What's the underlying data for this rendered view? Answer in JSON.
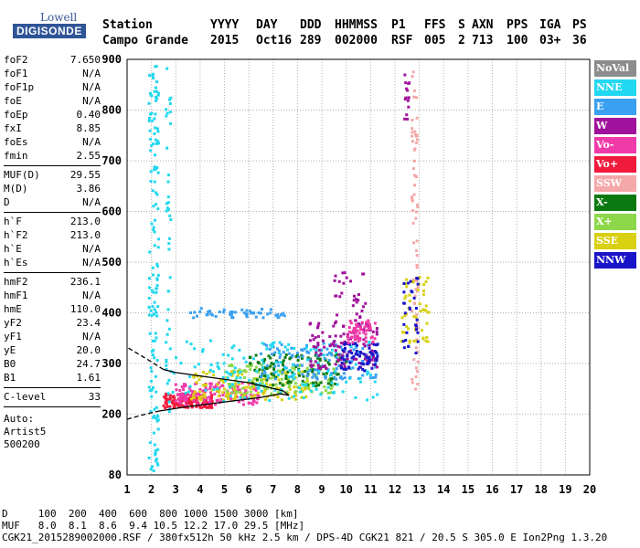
{
  "logo": {
    "line1": "Lowell",
    "line2": "DIGISONDE"
  },
  "header": {
    "cols": [
      {
        "label": "Station",
        "value": "Campo Grande"
      },
      {
        "label": "YYYY",
        "value": "2015"
      },
      {
        "label": "DAY",
        "value": "Oct16"
      },
      {
        "label": "DDD",
        "value": "289"
      },
      {
        "label": "HHMMSS",
        "value": "002000"
      },
      {
        "label": "P1",
        "value": "RSF"
      },
      {
        "label": "FFS",
        "value": "005"
      },
      {
        "label": "S",
        "value": "2"
      },
      {
        "label": "AXN",
        "value": "713"
      },
      {
        "label": "PPS",
        "value": "100"
      },
      {
        "label": "IGA",
        "value": "03+"
      },
      {
        "label": "PS",
        "value": "36"
      }
    ]
  },
  "params": {
    "group1": [
      {
        "name": "foF2",
        "value": "7.650"
      },
      {
        "name": "foF1",
        "value": "N/A"
      },
      {
        "name": "foF1p",
        "value": "N/A"
      },
      {
        "name": "foE",
        "value": "N/A"
      },
      {
        "name": "foEp",
        "value": "0.40"
      },
      {
        "name": "fxI",
        "value": "8.85"
      },
      {
        "name": "foEs",
        "value": "N/A"
      },
      {
        "name": "fmin",
        "value": "2.55"
      }
    ],
    "group2": [
      {
        "name": "MUF(D)",
        "value": "29.55"
      },
      {
        "name": "M(D)",
        "value": "3.86"
      },
      {
        "name": "D",
        "value": "N/A"
      }
    ],
    "group3": [
      {
        "name": "h`F",
        "value": "213.0"
      },
      {
        "name": "h`F2",
        "value": "213.0"
      },
      {
        "name": "h`E",
        "value": "N/A"
      },
      {
        "name": "h`Es",
        "value": "N/A"
      }
    ],
    "group4": [
      {
        "name": "hmF2",
        "value": "236.1"
      },
      {
        "name": "hmF1",
        "value": "N/A"
      },
      {
        "name": "hmE",
        "value": "110.0"
      },
      {
        "name": "yF2",
        "value": "23.4"
      },
      {
        "name": "yF1",
        "value": "N/A"
      },
      {
        "name": "yE",
        "value": "20.0"
      },
      {
        "name": "B0",
        "value": "24.7"
      },
      {
        "name": "B1",
        "value": "1.61"
      }
    ],
    "group5": [
      {
        "name": "C-level",
        "value": "33"
      }
    ],
    "auto": [
      "Auto:",
      "Artist5",
      "500200"
    ]
  },
  "legend": [
    {
      "label": "NoVal",
      "color": "#8c8c8c"
    },
    {
      "label": "NNE",
      "color": "#22d8f0"
    },
    {
      "label": "E",
      "color": "#3aa0f0"
    },
    {
      "label": "W",
      "color": "#a0129c"
    },
    {
      "label": "Vo-",
      "color": "#f03aa8"
    },
    {
      "label": "Vo+",
      "color": "#f01a3c"
    },
    {
      "label": "SSW",
      "color": "#f4a8a8"
    },
    {
      "label": "X-",
      "color": "#0a7a10"
    },
    {
      "label": "X+",
      "color": "#8cd84a"
    },
    {
      "label": "SSE",
      "color": "#d8d010"
    },
    {
      "label": "NNW",
      "color": "#1a14c8"
    }
  ],
  "footer": {
    "line1": "D     100  200  400  600  800 1000 1500 3000 [km]",
    "line2": "MUF   8.0  8.1  8.6  9.4 10.5 12.2 17.0 29.5 [MHz]",
    "line3": "CGK21_2015289002000.RSF / 380fx512h 50 kHz 2.5 km / DPS-4D CGK21 821 / 20.5 S 305.0 E Ion2Png 1.3.20"
  },
  "chart_data": {
    "type": "scatter",
    "xlim": [
      1,
      20
    ],
    "ylim": [
      80,
      900
    ],
    "xticks": [
      1,
      2,
      3,
      4,
      5,
      6,
      7,
      8,
      9,
      10,
      11,
      12,
      13,
      14,
      15,
      16,
      17,
      18,
      19,
      20
    ],
    "yticks": [
      80,
      200,
      300,
      400,
      500,
      600,
      700,
      800,
      900
    ],
    "grid": true,
    "xlabel": "",
    "ylabel": "",
    "clusters": [
      {
        "color": "#f01a3c",
        "x": [
          2.5,
          4.5
        ],
        "y": [
          212,
          240
        ],
        "n": 150
      },
      {
        "color": "#f03aa8",
        "x": [
          3.0,
          6.5
        ],
        "y": [
          218,
          262
        ],
        "n": 150
      },
      {
        "color": "#d8d010",
        "x": [
          3.5,
          8.5
        ],
        "y": [
          228,
          285
        ],
        "n": 140
      },
      {
        "color": "#8cd84a",
        "x": [
          5.0,
          9.5
        ],
        "y": [
          240,
          300
        ],
        "n": 120
      },
      {
        "color": "#0a7a10",
        "x": [
          6.0,
          10.0
        ],
        "y": [
          255,
          320
        ],
        "n": 110
      },
      {
        "color": "#3aa0f0",
        "x": [
          6.5,
          11.3
        ],
        "y": [
          268,
          340
        ],
        "n": 130
      },
      {
        "color": "#22d8f0",
        "x": [
          2.6,
          11.3
        ],
        "y": [
          225,
          345
        ],
        "n": 160
      },
      {
        "color": "#a0129c",
        "x": [
          8.5,
          11.3
        ],
        "y": [
          290,
          380
        ],
        "n": 110
      },
      {
        "color": "#1a14c8",
        "x": [
          9.8,
          11.3
        ],
        "y": [
          285,
          340
        ],
        "n": 60
      },
      {
        "color": "#f03aa8",
        "x": [
          10.0,
          11.2
        ],
        "y": [
          340,
          385
        ],
        "n": 60
      },
      {
        "color": "#22d8f0",
        "x": [
          1.9,
          2.3
        ],
        "y": [
          80,
          900
        ],
        "n": 140
      },
      {
        "color": "#22d8f0",
        "x": [
          2.6,
          2.8
        ],
        "y": [
          200,
          900
        ],
        "n": 40
      },
      {
        "color": "#f4a8a8",
        "x": [
          12.7,
          12.95
        ],
        "y": [
          240,
          880
        ],
        "n": 70
      },
      {
        "color": "#d8d010",
        "x": [
          12.2,
          13.4
        ],
        "y": [
          340,
          470
        ],
        "n": 50
      },
      {
        "color": "#1a14c8",
        "x": [
          12.3,
          13.0
        ],
        "y": [
          320,
          470
        ],
        "n": 30
      },
      {
        "color": "#a0129c",
        "x": [
          12.4,
          12.6
        ],
        "y": [
          780,
          880
        ],
        "n": 15
      },
      {
        "color": "#3aa0f0",
        "x": [
          3.5,
          7.5
        ],
        "y": [
          390,
          410
        ],
        "n": 50
      },
      {
        "color": "#a0129c",
        "x": [
          9.5,
          10.8
        ],
        "y": [
          380,
          480
        ],
        "n": 30
      }
    ],
    "traces": [
      {
        "color": "#000000",
        "style": "dashed",
        "points": [
          [
            1.0,
            190
          ],
          [
            1.6,
            198
          ],
          [
            2.3,
            206
          ]
        ]
      },
      {
        "color": "#000000",
        "style": "solid",
        "points": [
          [
            2.3,
            206
          ],
          [
            3.5,
            215
          ],
          [
            5.0,
            224
          ],
          [
            6.5,
            233
          ],
          [
            7.3,
            240
          ],
          [
            7.65,
            237
          ],
          [
            7.4,
            246
          ],
          [
            6.0,
            262
          ],
          [
            4.5,
            272
          ],
          [
            3.0,
            282
          ],
          [
            2.5,
            288
          ]
        ]
      },
      {
        "color": "#000000",
        "style": "dashed",
        "points": [
          [
            2.5,
            288
          ],
          [
            1.9,
            306
          ],
          [
            1.0,
            332
          ]
        ]
      }
    ]
  }
}
